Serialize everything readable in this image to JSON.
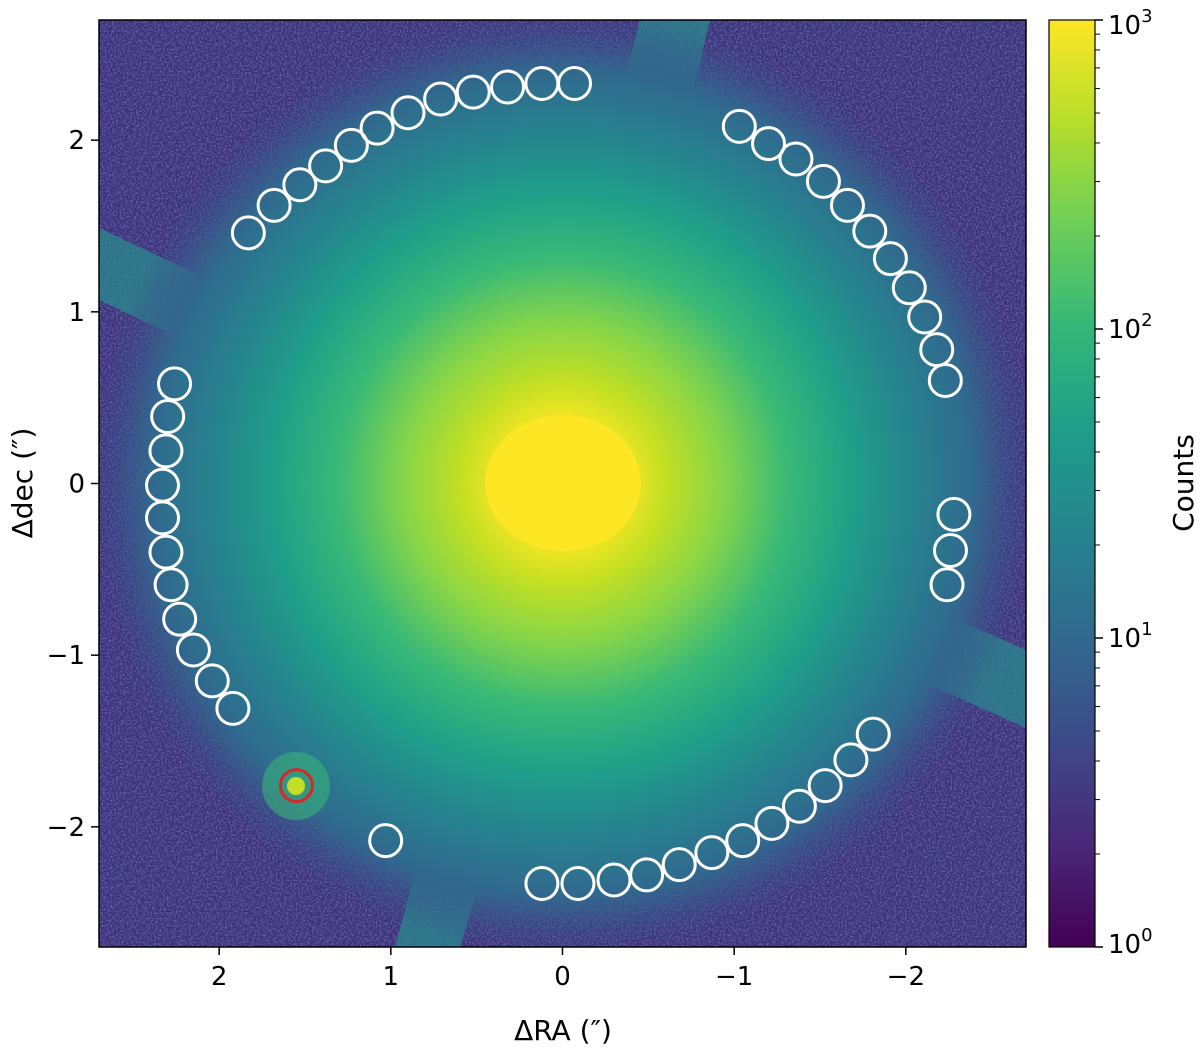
{
  "chart_data": {
    "type": "heatmap",
    "title": "",
    "xlabel": "ΔRA (″)",
    "ylabel": "Δdec (″)",
    "xlim": [
      2.7,
      -2.7
    ],
    "ylim": [
      -2.7,
      2.7
    ],
    "x_inverted": true,
    "xticks": [
      {
        "value": 2,
        "label": "2"
      },
      {
        "value": 1,
        "label": "1"
      },
      {
        "value": 0,
        "label": "0"
      },
      {
        "value": -1,
        "label": "−1"
      },
      {
        "value": -2,
        "label": "−2"
      }
    ],
    "yticks": [
      {
        "value": 2,
        "label": "2"
      },
      {
        "value": 1,
        "label": "1"
      },
      {
        "value": 0,
        "label": "0"
      },
      {
        "value": -1,
        "label": "−1"
      },
      {
        "value": -2,
        "label": "−2"
      }
    ],
    "colormap": "viridis",
    "colorbar": {
      "label": "Counts",
      "scale": "log",
      "range": [
        1,
        1000
      ],
      "ticks": [
        {
          "value": 1,
          "base": "10",
          "exp": "0"
        },
        {
          "value": 10,
          "base": "10",
          "exp": "1"
        },
        {
          "value": 100,
          "base": "10",
          "exp": "2"
        },
        {
          "value": 1000,
          "base": "10",
          "exp": "3"
        }
      ]
    },
    "companion": {
      "x": 1.55,
      "y": -1.76,
      "marker": "circle",
      "color": "#d62728"
    },
    "apertures": {
      "marker": "circle",
      "color": "#ffffff",
      "points": [
        [
          1.83,
          1.46
        ],
        [
          1.68,
          1.62
        ],
        [
          1.53,
          1.74
        ],
        [
          1.38,
          1.85
        ],
        [
          1.23,
          1.97
        ],
        [
          1.08,
          2.07
        ],
        [
          0.9,
          2.16
        ],
        [
          0.71,
          2.24
        ],
        [
          0.52,
          2.28
        ],
        [
          0.32,
          2.31
        ],
        [
          0.12,
          2.33
        ],
        [
          -0.07,
          2.33
        ],
        [
          -1.03,
          2.08
        ],
        [
          -1.2,
          1.98
        ],
        [
          -1.36,
          1.89
        ],
        [
          -1.52,
          1.76
        ],
        [
          -1.66,
          1.62
        ],
        [
          -1.79,
          1.47
        ],
        [
          -1.91,
          1.31
        ],
        [
          -2.02,
          1.14
        ],
        [
          -2.11,
          0.97
        ],
        [
          -2.18,
          0.78
        ],
        [
          -2.23,
          0.6
        ],
        [
          -2.28,
          -0.18
        ],
        [
          -2.26,
          -0.39
        ],
        [
          -2.24,
          -0.59
        ],
        [
          2.26,
          0.58
        ],
        [
          2.3,
          0.39
        ],
        [
          2.31,
          0.19
        ],
        [
          2.33,
          -0.01
        ],
        [
          2.33,
          -0.2
        ],
        [
          2.31,
          -0.4
        ],
        [
          2.28,
          -0.59
        ],
        [
          2.23,
          -0.79
        ],
        [
          2.15,
          -0.97
        ],
        [
          2.04,
          -1.15
        ],
        [
          1.92,
          -1.31
        ],
        [
          1.03,
          -2.08
        ],
        [
          0.12,
          -2.33
        ],
        [
          -0.09,
          -2.33
        ],
        [
          -0.3,
          -2.31
        ],
        [
          -0.49,
          -2.28
        ],
        [
          -0.68,
          -2.22
        ],
        [
          -0.87,
          -2.15
        ],
        [
          -1.05,
          -2.08
        ],
        [
          -1.22,
          -1.98
        ],
        [
          -1.38,
          -1.88
        ],
        [
          -1.53,
          -1.76
        ],
        [
          -1.68,
          -1.61
        ],
        [
          -1.81,
          -1.46
        ]
      ]
    }
  }
}
